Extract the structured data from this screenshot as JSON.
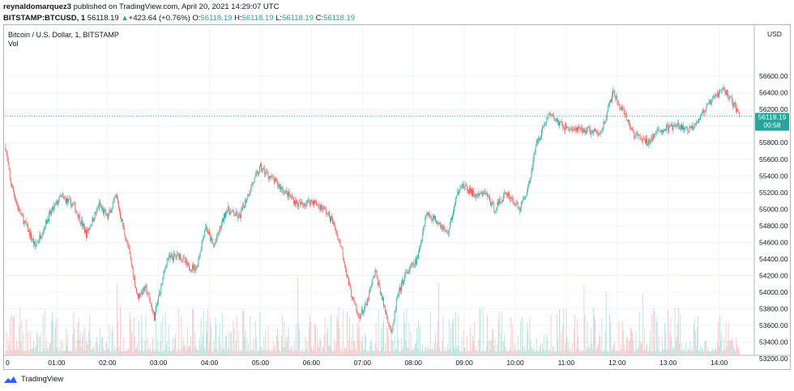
{
  "header": {
    "author": "reynaldomarquez3",
    "published_text": "published on TradingView.com, April 20, 2021 14:29:07 UTC"
  },
  "ticker": {
    "symbol": "BITSTAMP:BTCUSD, 1",
    "last": "56118.19",
    "change": "+423.64 (+0.76%)",
    "o_label": "O:",
    "o": "56118.19",
    "h_label": "H:",
    "h": "56118.19",
    "l_label": "L:",
    "l": "56118.19",
    "c_label": "C:",
    "c": "56118.19"
  },
  "legend": {
    "title": "Bitcoin / U.S. Dollar, 1, BITSTAMP",
    "vol": "Vol"
  },
  "price_axis": {
    "currency": "USD",
    "current_price": "56118.19",
    "countdown": "00:58"
  },
  "footer": {
    "brand": "TradingView"
  },
  "colors": {
    "up": "#26a69a",
    "down": "#ef5350",
    "grid": "#f0f3fa",
    "axis_text": "#131722"
  },
  "chart_data": {
    "type": "candlestick",
    "title": "Bitcoin / U.S. Dollar, 1, BITSTAMP",
    "ylim": [
      53100,
      56800
    ],
    "xlim_hours": [
      0,
      14.6
    ],
    "y_ticks": [
      53200,
      53400,
      53600,
      53800,
      54000,
      54200,
      54400,
      54600,
      54800,
      55000,
      55200,
      55400,
      55600,
      55800,
      56000,
      56200,
      56400,
      56600
    ],
    "y_tick_labels": [
      "53200.00",
      "53400.00",
      "53600.00",
      "53800.00",
      "54000.00",
      "54200.00",
      "54400.00",
      "54600.00",
      "54800.00",
      "55000.00",
      "55200.00",
      "55400.00",
      "55600.00",
      "55800.00",
      "56000.00",
      "56200.00",
      "56400.00",
      "56600.00"
    ],
    "x_ticks": [
      "0",
      "01:00",
      "02:00",
      "03:00",
      "04:00",
      "05:00",
      "06:00",
      "07:00",
      "08:00",
      "09:00",
      "10:00",
      "11:00",
      "12:00",
      "13:00",
      "14:00"
    ],
    "current_price": 56118.19,
    "price_path": [
      {
        "t": "00:00",
        "price": 55750
      },
      {
        "t": "00:05",
        "price": 55350
      },
      {
        "t": "00:15",
        "price": 55000
      },
      {
        "t": "00:35",
        "price": 54550
      },
      {
        "t": "00:50",
        "price": 54900
      },
      {
        "t": "01:05",
        "price": 55150
      },
      {
        "t": "01:20",
        "price": 55050
      },
      {
        "t": "01:35",
        "price": 54700
      },
      {
        "t": "01:50",
        "price": 55050
      },
      {
        "t": "02:00",
        "price": 54900
      },
      {
        "t": "02:10",
        "price": 55150
      },
      {
        "t": "02:25",
        "price": 54500
      },
      {
        "t": "02:35",
        "price": 53950
      },
      {
        "t": "02:45",
        "price": 54050
      },
      {
        "t": "02:55",
        "price": 53700
      },
      {
        "t": "03:10",
        "price": 54400
      },
      {
        "t": "03:25",
        "price": 54450
      },
      {
        "t": "03:35",
        "price": 54300
      },
      {
        "t": "03:45",
        "price": 54300
      },
      {
        "t": "03:55",
        "price": 54800
      },
      {
        "t": "04:05",
        "price": 54550
      },
      {
        "t": "04:20",
        "price": 55000
      },
      {
        "t": "04:35",
        "price": 54900
      },
      {
        "t": "04:50",
        "price": 55300
      },
      {
        "t": "05:00",
        "price": 55500
      },
      {
        "t": "05:15",
        "price": 55350
      },
      {
        "t": "05:30",
        "price": 55200
      },
      {
        "t": "05:45",
        "price": 55050
      },
      {
        "t": "06:00",
        "price": 55100
      },
      {
        "t": "06:15",
        "price": 55000
      },
      {
        "t": "06:25",
        "price": 54850
      },
      {
        "t": "06:35",
        "price": 54550
      },
      {
        "t": "06:45",
        "price": 54050
      },
      {
        "t": "06:55",
        "price": 53700
      },
      {
        "t": "07:05",
        "price": 53850
      },
      {
        "t": "07:15",
        "price": 54250
      },
      {
        "t": "07:25",
        "price": 53850
      },
      {
        "t": "07:35",
        "price": 53500
      },
      {
        "t": "07:40",
        "price": 53900
      },
      {
        "t": "07:50",
        "price": 54200
      },
      {
        "t": "08:05",
        "price": 54400
      },
      {
        "t": "08:15",
        "price": 54950
      },
      {
        "t": "08:30",
        "price": 54850
      },
      {
        "t": "08:40",
        "price": 54700
      },
      {
        "t": "08:55",
        "price": 55300
      },
      {
        "t": "09:15",
        "price": 55150
      },
      {
        "t": "09:25",
        "price": 55200
      },
      {
        "t": "09:35",
        "price": 55000
      },
      {
        "t": "09:50",
        "price": 55200
      },
      {
        "t": "10:05",
        "price": 55000
      },
      {
        "t": "10:15",
        "price": 55250
      },
      {
        "t": "10:25",
        "price": 55800
      },
      {
        "t": "10:40",
        "price": 56150
      },
      {
        "t": "10:55",
        "price": 56000
      },
      {
        "t": "11:10",
        "price": 55950
      },
      {
        "t": "11:25",
        "price": 55950
      },
      {
        "t": "11:40",
        "price": 55900
      },
      {
        "t": "11:55",
        "price": 56400
      },
      {
        "t": "12:05",
        "price": 56200
      },
      {
        "t": "12:20",
        "price": 55900
      },
      {
        "t": "12:35",
        "price": 55800
      },
      {
        "t": "12:50",
        "price": 55950
      },
      {
        "t": "13:10",
        "price": 56000
      },
      {
        "t": "13:25",
        "price": 55950
      },
      {
        "t": "13:40",
        "price": 56150
      },
      {
        "t": "13:55",
        "price": 56350
      },
      {
        "t": "14:05",
        "price": 56450
      },
      {
        "t": "14:15",
        "price": 56300
      },
      {
        "t": "14:25",
        "price": 56118
      }
    ]
  }
}
